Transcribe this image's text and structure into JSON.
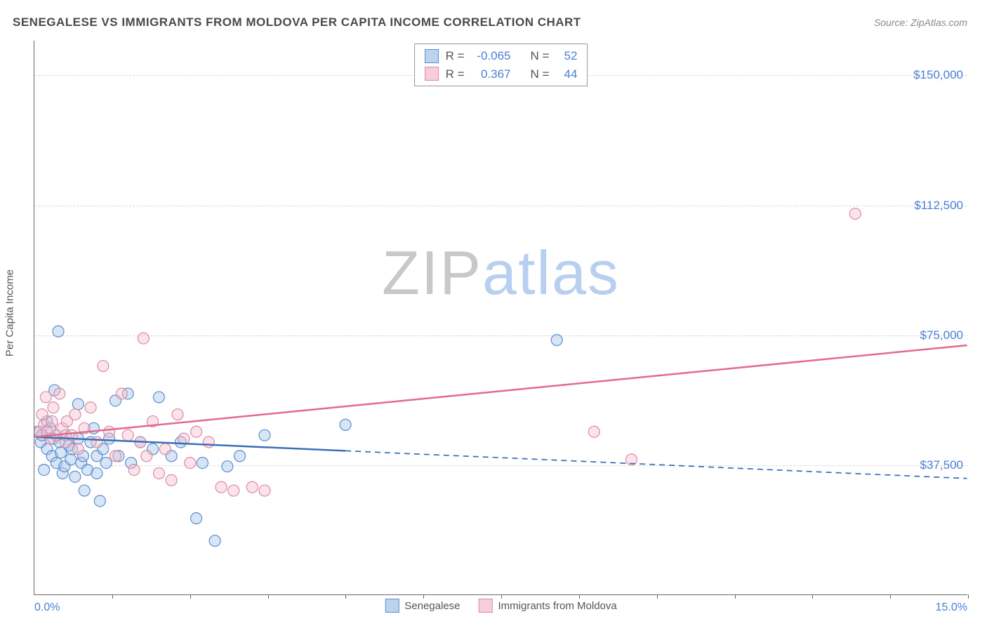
{
  "title": "SENEGALESE VS IMMIGRANTS FROM MOLDOVA PER CAPITA INCOME CORRELATION CHART",
  "source_label": "Source:",
  "source_value": "ZipAtlas.com",
  "watermark": {
    "zip": "ZIP",
    "atlas": "atlas"
  },
  "chart": {
    "type": "scatter",
    "ylabel": "Per Capita Income",
    "xlim": [
      0,
      15
    ],
    "ylim": [
      0,
      160000
    ],
    "x_min_label": "0.0%",
    "x_max_label": "15.0%",
    "xtick_positions": [
      1.25,
      2.5,
      3.75,
      5.0,
      6.25,
      7.5,
      8.75,
      10.0,
      11.25,
      12.5,
      13.75,
      15.0
    ],
    "ygrid": [
      {
        "value": 37500,
        "label": "$37,500"
      },
      {
        "value": 75000,
        "label": "$75,000"
      },
      {
        "value": 112500,
        "label": "$112,500"
      },
      {
        "value": 150000,
        "label": "$150,000"
      }
    ],
    "background_color": "#ffffff",
    "grid_color": "#d8d8d8",
    "axis_color": "#666666",
    "marker_radius": 8,
    "marker_stroke_width": 1.2,
    "marker_fill_opacity": 0.45,
    "line_width": 2.5,
    "series": [
      {
        "name": "Senegalese",
        "color_stroke": "#5a8ecf",
        "color_fill": "#a9c6e8",
        "swatch_fill": "#bcd3ee",
        "swatch_border": "#5a8ecf",
        "line_color": "#3d6fb8",
        "R": "-0.065",
        "N": "52",
        "trend": {
          "x1": 0,
          "y1": 45500,
          "x2": 15,
          "y2": 33500,
          "x_solid_end": 5.0
        },
        "points": [
          [
            0.05,
            47000
          ],
          [
            0.1,
            44000
          ],
          [
            0.12,
            46000
          ],
          [
            0.15,
            36000
          ],
          [
            0.2,
            50000
          ],
          [
            0.2,
            42000
          ],
          [
            0.25,
            48000
          ],
          [
            0.28,
            40000
          ],
          [
            0.3,
            45000
          ],
          [
            0.32,
            59000
          ],
          [
            0.35,
            38000
          ],
          [
            0.38,
            76000
          ],
          [
            0.4,
            44000
          ],
          [
            0.42,
            41000
          ],
          [
            0.45,
            35000
          ],
          [
            0.48,
            37000
          ],
          [
            0.5,
            46000
          ],
          [
            0.55,
            43000
          ],
          [
            0.58,
            39000
          ],
          [
            0.6,
            42000
          ],
          [
            0.65,
            34000
          ],
          [
            0.7,
            55000
          ],
          [
            0.7,
            45000
          ],
          [
            0.75,
            38000
          ],
          [
            0.78,
            40000
          ],
          [
            0.8,
            30000
          ],
          [
            0.85,
            36000
          ],
          [
            0.9,
            44000
          ],
          [
            0.95,
            48000
          ],
          [
            1.0,
            40000
          ],
          [
            1.0,
            35000
          ],
          [
            1.05,
            27000
          ],
          [
            1.1,
            42000
          ],
          [
            1.15,
            38000
          ],
          [
            1.2,
            45000
          ],
          [
            1.3,
            56000
          ],
          [
            1.35,
            40000
          ],
          [
            1.5,
            58000
          ],
          [
            1.55,
            38000
          ],
          [
            1.7,
            44000
          ],
          [
            1.9,
            42000
          ],
          [
            2.0,
            57000
          ],
          [
            2.2,
            40000
          ],
          [
            2.35,
            44000
          ],
          [
            2.6,
            22000
          ],
          [
            2.7,
            38000
          ],
          [
            2.9,
            15500
          ],
          [
            3.1,
            37000
          ],
          [
            3.3,
            40000
          ],
          [
            3.7,
            46000
          ],
          [
            5.0,
            49000
          ],
          [
            8.4,
            73500
          ]
        ]
      },
      {
        "name": "Immigrants from Moldova",
        "color_stroke": "#e089a3",
        "color_fill": "#f3c0cf",
        "swatch_fill": "#f6cdd9",
        "swatch_border": "#e089a3",
        "line_color": "#e26a8d",
        "R": "0.367",
        "N": "44",
        "trend": {
          "x1": 0,
          "y1": 45500,
          "x2": 15,
          "y2": 72000,
          "x_solid_end": 15.0
        },
        "points": [
          [
            0.08,
            47000
          ],
          [
            0.12,
            52000
          ],
          [
            0.15,
            49000
          ],
          [
            0.18,
            57000
          ],
          [
            0.2,
            47000
          ],
          [
            0.25,
            45000
          ],
          [
            0.28,
            50000
          ],
          [
            0.3,
            54000
          ],
          [
            0.35,
            46000
          ],
          [
            0.4,
            58000
          ],
          [
            0.45,
            48000
          ],
          [
            0.5,
            44000
          ],
          [
            0.52,
            50000
          ],
          [
            0.6,
            46000
          ],
          [
            0.65,
            52000
          ],
          [
            0.7,
            42000
          ],
          [
            0.8,
            48000
          ],
          [
            0.9,
            54000
          ],
          [
            1.0,
            44000
          ],
          [
            1.1,
            66000
          ],
          [
            1.2,
            47000
          ],
          [
            1.3,
            40000
          ],
          [
            1.4,
            58000
          ],
          [
            1.5,
            46000
          ],
          [
            1.6,
            36000
          ],
          [
            1.7,
            44000
          ],
          [
            1.75,
            74000
          ],
          [
            1.8,
            40000
          ],
          [
            1.9,
            50000
          ],
          [
            2.0,
            35000
          ],
          [
            2.1,
            42000
          ],
          [
            2.2,
            33000
          ],
          [
            2.3,
            52000
          ],
          [
            2.4,
            45000
          ],
          [
            2.5,
            38000
          ],
          [
            2.6,
            47000
          ],
          [
            2.8,
            44000
          ],
          [
            3.0,
            31000
          ],
          [
            3.2,
            30000
          ],
          [
            3.5,
            31000
          ],
          [
            3.7,
            30000
          ],
          [
            9.0,
            47000
          ],
          [
            9.6,
            39000
          ],
          [
            13.2,
            110000
          ]
        ]
      }
    ],
    "legend_top": {
      "r_label": "R =",
      "n_label": "N ="
    },
    "legend_bottom_labels": [
      "Senegalese",
      "Immigrants from Moldova"
    ]
  }
}
